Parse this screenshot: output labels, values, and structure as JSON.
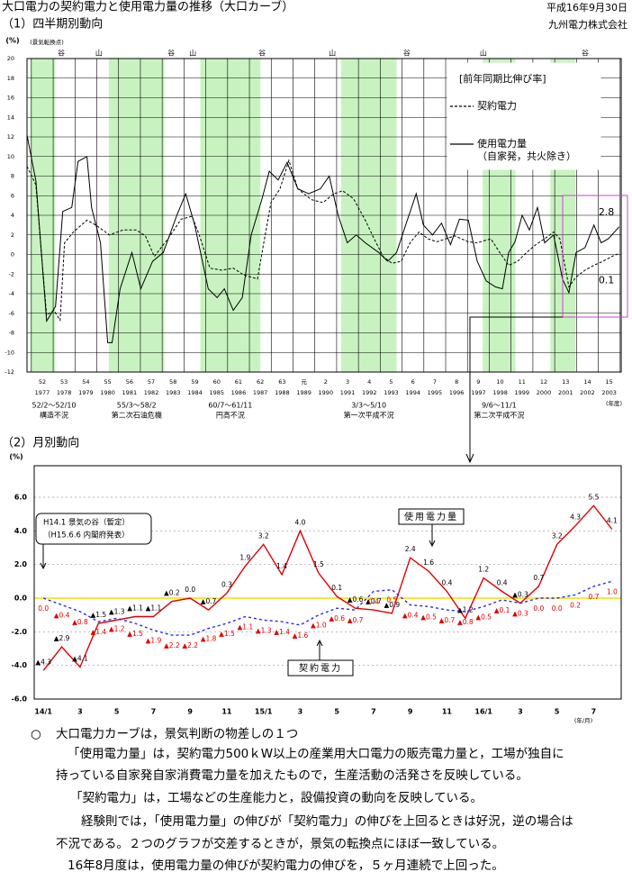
{
  "header": {
    "title": "大口電力の契約電力と使用電力量の推移（大口カーブ）",
    "date": "平成16年9月30日",
    "company": "九州電力株式会社"
  },
  "chart_data": [
    {
      "type": "line",
      "title": "（1）四半期別動向",
      "ylabel": "(%)",
      "top_note": "(景気転換点)",
      "xlabel": "(年度)",
      "xlim": [
        1976.8,
        2004.05
      ],
      "ylim": [
        -12,
        20
      ],
      "yticks": [
        -12,
        -10,
        -8,
        -6,
        -4,
        -2,
        0,
        2,
        4,
        6,
        8,
        10,
        12,
        14,
        16,
        18,
        20
      ],
      "xgrid": [
        1977,
        1978,
        1979,
        1980,
        1981,
        1982,
        1983,
        1984,
        1985,
        1986,
        1987,
        1988,
        1989,
        1990,
        1991,
        1992,
        1993,
        1994,
        1995,
        1996,
        1997,
        1998,
        1999,
        2000,
        2001,
        2002,
        2003,
        2004
      ],
      "xticks": [
        {
          "value": 1977.5,
          "label": "1977"
        },
        {
          "value": 1978.5,
          "label": "1978"
        },
        {
          "value": 1979.5,
          "label": "1979"
        },
        {
          "value": 1980.5,
          "label": "1980"
        },
        {
          "value": 1981.5,
          "label": "1981"
        },
        {
          "value": 1982.5,
          "label": "1982"
        },
        {
          "value": 1983.5,
          "label": "1983"
        },
        {
          "value": 1984.5,
          "label": "1984"
        },
        {
          "value": 1985.5,
          "label": "1985"
        },
        {
          "value": 1986.5,
          "label": "1986"
        },
        {
          "value": 1987.5,
          "label": "1987"
        },
        {
          "value": 1988.5,
          "label": "1988"
        },
        {
          "value": 1989.5,
          "label": "1989"
        },
        {
          "value": 1990.5,
          "label": "1990"
        },
        {
          "value": 1991.5,
          "label": "1991"
        },
        {
          "value": 1992.5,
          "label": "1992"
        },
        {
          "value": 1993.5,
          "label": "1993"
        },
        {
          "value": 1994.5,
          "label": "1994"
        },
        {
          "value": 1995.5,
          "label": "1995"
        },
        {
          "value": 1996.5,
          "label": "1996"
        },
        {
          "value": 1997.5,
          "label": "1997"
        },
        {
          "value": 1998.5,
          "label": "1998"
        },
        {
          "value": 1999.5,
          "label": "1999"
        },
        {
          "value": 2000.5,
          "label": "2000"
        },
        {
          "value": 2001.5,
          "label": "2001"
        },
        {
          "value": 2002.5,
          "label": "2002"
        },
        {
          "value": 2003.5,
          "label": "2003"
        }
      ],
      "xticks_era": [
        {
          "value": 1977.5,
          "label": "52"
        },
        {
          "value": 1978.5,
          "label": "53"
        },
        {
          "value": 1979.5,
          "label": "54"
        },
        {
          "value": 1980.5,
          "label": "55"
        },
        {
          "value": 1981.5,
          "label": "56"
        },
        {
          "value": 1982.5,
          "label": "57"
        },
        {
          "value": 1983.5,
          "label": "58"
        },
        {
          "value": 1984.5,
          "label": "59"
        },
        {
          "value": 1985.5,
          "label": "60"
        },
        {
          "value": 1986.5,
          "label": "61"
        },
        {
          "value": 1987.5,
          "label": "62"
        },
        {
          "value": 1988.5,
          "label": "63"
        },
        {
          "value": 1989.5,
          "label": "元"
        },
        {
          "value": 1990.5,
          "label": "2"
        },
        {
          "value": 1991.5,
          "label": "3"
        },
        {
          "value": 1992.5,
          "label": "4"
        },
        {
          "value": 1993.5,
          "label": "5"
        },
        {
          "value": 1994.5,
          "label": "6"
        },
        {
          "value": 1995.5,
          "label": "7"
        },
        {
          "value": 1996.5,
          "label": "8"
        },
        {
          "value": 1997.5,
          "label": "9"
        },
        {
          "value": 1998.5,
          "label": "10"
        },
        {
          "value": 1999.5,
          "label": "11"
        },
        {
          "value": 2000.5,
          "label": "12"
        },
        {
          "value": 2001.5,
          "label": "13"
        },
        {
          "value": 2002.5,
          "label": "14"
        },
        {
          "value": 2003.5,
          "label": "15"
        }
      ],
      "grid": true,
      "shade_color": "#c8f3c0",
      "shaded_periods": [
        {
          "start": 1976.96,
          "end": 1978.1,
          "label": "52/2～52/10",
          "caption": "構造不況"
        },
        {
          "start": 1980.55,
          "end": 1983.1,
          "label": "55/3～58/2",
          "caption": "第二次石油危機"
        },
        {
          "start": 1984.75,
          "end": 1987.5,
          "label": "60/7～61/11",
          "caption": "円高不況"
        },
        {
          "start": 1991.2,
          "end": 1993.75,
          "label": "3/3～5/10",
          "caption": "第一次平成不況"
        },
        {
          "start": 1997.7,
          "end": 1999.2,
          "label": "9/6～11/1",
          "caption": "第二次平成不況"
        },
        {
          "start": 2000.8,
          "end": 2001.95
        }
      ],
      "cycle_markers": [
        {
          "x": 1978.37,
          "label": "谷"
        },
        {
          "x": 1980.1,
          "label": "山"
        },
        {
          "x": 1983.41,
          "label": "谷"
        },
        {
          "x": 1984.4,
          "label": "山"
        },
        {
          "x": 1987.58,
          "label": "谷"
        },
        {
          "x": 1990.8,
          "label": "山"
        },
        {
          "x": 1994.22,
          "label": "谷"
        },
        {
          "x": 1997.73,
          "label": "山"
        },
        {
          "x": 2002.4,
          "label": "谷"
        }
      ],
      "legend_title": "[前年同期比伸び率]",
      "label_last": true,
      "series": [
        {
          "name": "契約電力",
          "color": "#000000",
          "dash": true,
          "x": [
            1976.8,
            1977.21,
            1977.49,
            1977.7,
            1978.03,
            1978.32,
            1978.52,
            1978.93,
            1979.55,
            1979.96,
            1980.58,
            1981.2,
            1981.81,
            1982.23,
            1982.64,
            1983.26,
            1983.87,
            1984.37,
            1984.7,
            1985.19,
            1985.72,
            1986.26,
            1986.75,
            1987.37,
            1987.66,
            1987.99,
            1988.4,
            1988.81,
            1989.22,
            1989.84,
            1990.37,
            1990.87,
            1991.28,
            1991.77,
            1992.31,
            1992.72,
            1993.13,
            1993.54,
            1993.96,
            1994.37,
            1994.78,
            1995.19,
            1995.6,
            1996.01,
            1996.42,
            1997.04,
            1997.45,
            1998.07,
            1998.48,
            1998.89,
            1999.3,
            1999.71,
            2000.13,
            2000.54,
            2000.95,
            2001.24,
            2001.65,
            2001.98,
            2002.39,
            2002.8,
            2003.21,
            2003.62,
            2003.95
          ],
          "values": [
            9,
            7.1,
            -0.7,
            -6.2,
            -5.7,
            -6.7,
            1.2,
            2.3,
            3.5,
            3,
            2,
            2.5,
            2.5,
            1.9,
            -0.2,
            1.6,
            3.6,
            3.9,
            2,
            -1.4,
            -1.6,
            -1.4,
            -2.1,
            -2.5,
            1.2,
            5.3,
            6.7,
            9.6,
            6.7,
            5.6,
            5.3,
            6.2,
            6.5,
            5.7,
            3.5,
            1.6,
            -0.2,
            -0.9,
            -0.7,
            1.2,
            2.3,
            1.6,
            1.3,
            1.6,
            1.9,
            1.3,
            1.2,
            1.6,
            0.2,
            -1.1,
            -0.7,
            0.2,
            1,
            1.6,
            2.3,
            1.6,
            -3.3,
            -2.3,
            -1.6,
            -1.1,
            -0.7,
            -0.2,
            0.1
          ]
        },
        {
          "name": "使用電力量",
          "note": "（自家発，共火除き）",
          "color": "#000000",
          "dash": false,
          "x": [
            1976.8,
            1977.21,
            1977.7,
            1978.11,
            1978.44,
            1978.85,
            1979.14,
            1979.55,
            1979.76,
            1980.17,
            1980.5,
            1980.7,
            1981.07,
            1981.61,
            1982.02,
            1982.56,
            1983.05,
            1983.67,
            1984.08,
            1984.49,
            1985.11,
            1985.52,
            1985.85,
            1986.26,
            1986.67,
            1987.08,
            1987.58,
            1987.91,
            1988.32,
            1988.73,
            1989.22,
            1989.72,
            1990.25,
            1990.66,
            1991.07,
            1991.49,
            1991.9,
            1992.31,
            1992.93,
            1993.34,
            1993.75,
            1994.24,
            1994.65,
            1994.98,
            1995.4,
            1995.81,
            1996.22,
            1996.63,
            1997.04,
            1997.45,
            1997.86,
            1998.28,
            1998.6,
            1998.89,
            1999.18,
            1999.51,
            1999.84,
            2000.21,
            2000.54,
            2000.95,
            2001.36,
            2001.65,
            2001.98,
            2002.39,
            2002.8,
            2003.13,
            2003.46,
            2003.95
          ],
          "values": [
            12.2,
            7.5,
            -6.8,
            -5.3,
            4.4,
            4.8,
            9.5,
            10,
            4.8,
            1.2,
            -9,
            -9,
            -3.5,
            0.2,
            -3.5,
            -0.7,
            0.2,
            4,
            6.2,
            3,
            -3.5,
            -4.4,
            -3.5,
            -5.7,
            -4.4,
            2,
            5.7,
            8.5,
            7.6,
            9.4,
            6.7,
            6.2,
            6.7,
            8,
            4,
            1.2,
            2,
            1.2,
            0.2,
            -0.7,
            0.2,
            3.5,
            6.2,
            3,
            2,
            3.2,
            1,
            3.6,
            3.5,
            -0.7,
            -2.7,
            -3.3,
            -3.5,
            0.2,
            1.3,
            4,
            2.5,
            4.8,
            1.2,
            2,
            -2.5,
            -3.9,
            0.2,
            0.7,
            3,
            1.2,
            1.6,
            2.8
          ]
        }
      ]
    },
    {
      "type": "line",
      "title": "（2）月別動向",
      "ylabel": "(%)",
      "xlabel": "(年/月)",
      "ylim": [
        -6,
        6
      ],
      "yticks": [
        {
          "value": -6,
          "label": "-6.0"
        },
        {
          "value": -4,
          "label": "-4.0"
        },
        {
          "value": -2,
          "label": "-2.0"
        },
        {
          "value": 0,
          "label": "0.0"
        },
        {
          "value": 2,
          "label": "2.0"
        },
        {
          "value": 4,
          "label": "4.0"
        },
        {
          "value": 6,
          "label": "6.0"
        }
      ],
      "grid": true,
      "zero_line_color": "#f0e000",
      "categories": [
        "14/1",
        null,
        "3",
        null,
        "5",
        null,
        "7",
        null,
        "9",
        null,
        "11",
        null,
        "15/1",
        null,
        "3",
        null,
        "5",
        null,
        "7",
        null,
        "9",
        null,
        "11",
        null,
        "16/1",
        null,
        "3",
        null,
        "5",
        null,
        "7",
        null
      ],
      "annotation": [
        "H14.1 景気の谷（暫定）",
        "（H15.6.6 内閣府発表）"
      ],
      "series": [
        {
          "name": "使用電力量",
          "color": "#e00000",
          "dash": false,
          "label_color": "#000000",
          "values": [
            -4.3,
            -2.9,
            -4.1,
            -1.5,
            -1.3,
            -1.1,
            -1.1,
            -0.2,
            0.0,
            -0.7,
            0.3,
            1.9,
            3.2,
            1.4,
            4.0,
            1.5,
            0.1,
            -0.6,
            -0.7,
            -0.9,
            2.4,
            1.6,
            0.4,
            -1.2,
            1.2,
            0.4,
            -0.3,
            0.7,
            3.2,
            4.3,
            5.5,
            4.1
          ],
          "value_labels": [
            "▲4.3",
            "▲2.9",
            "▲4.1",
            "▲1.5",
            "▲1.3",
            "▲1.1",
            "▲1.1",
            "▲0.2",
            "0.0",
            "▲0.7",
            "0.3",
            "1.9",
            "3.2",
            "1.4",
            "4.0",
            "1.5",
            "0.1",
            "▲0.6",
            "▲0.7",
            "▲0.9",
            "2.4",
            "1.6",
            "0.4",
            "▲1.2",
            "1.2",
            "0.4",
            "▲0.3",
            "0.7",
            "3.2",
            "4.3",
            "5.5",
            "4.1"
          ]
        },
        {
          "name": "契約電力",
          "color": "#2828ff",
          "dash": true,
          "label_color": "#e00000",
          "values": [
            0.0,
            -0.4,
            -0.8,
            -1.4,
            -1.2,
            -1.5,
            -1.9,
            -2.2,
            -2.2,
            -1.8,
            -1.5,
            -1.1,
            -1.3,
            -1.4,
            -1.6,
            -1.0,
            -0.6,
            -0.7,
            0.4,
            0.5,
            -0.4,
            -0.5,
            -0.7,
            -0.8,
            -0.5,
            -0.1,
            -0.3,
            0.0,
            0.0,
            0.2,
            0.7,
            1.0
          ],
          "value_labels": [
            "0.0",
            "▲0.4",
            "▲0.8",
            "▲1.4",
            "▲1.2",
            "▲1.5",
            "▲1.9",
            "▲2.2",
            "▲2.2",
            "▲1.8",
            "▲1.5",
            "▲1.1",
            "▲1.3",
            "▲1.4",
            "▲1.6",
            "▲1.0",
            "▲0.6",
            "▲0.7",
            "0.4",
            "0.5",
            "▲0.4",
            "▲0.5",
            "▲0.7",
            "▲0.8",
            "▲0.5",
            "▲0.1",
            "▲0.3",
            "0.0",
            "0.0",
            "0.2",
            "0.7",
            "1.0"
          ]
        }
      ]
    }
  ],
  "notes": {
    "heading": "大口電力カーブは，景気判断の物差しの１つ",
    "lines": [
      "「使用電力量」は，契約電力500ｋW以上の産業用大口電力の販売電力量と，工場が独自に",
      "持っている自家発自家消費電力量を加えたもので，生産活動の活発さを反映している。",
      "「契約電力」は，工場などの生産能力と，設備投資の動向を反映している。",
      "経験則では，「使用電力量」の伸びが「契約電力」の伸びを上回るときは好況，逆の場合は",
      "不況である。２つのグラフが交差するときが，景気の転換点にほぼ一致している。",
      "16年8月度は，使用電力量の伸びが契約電力の伸びを，５ヶ月連続で上回った。"
    ]
  }
}
